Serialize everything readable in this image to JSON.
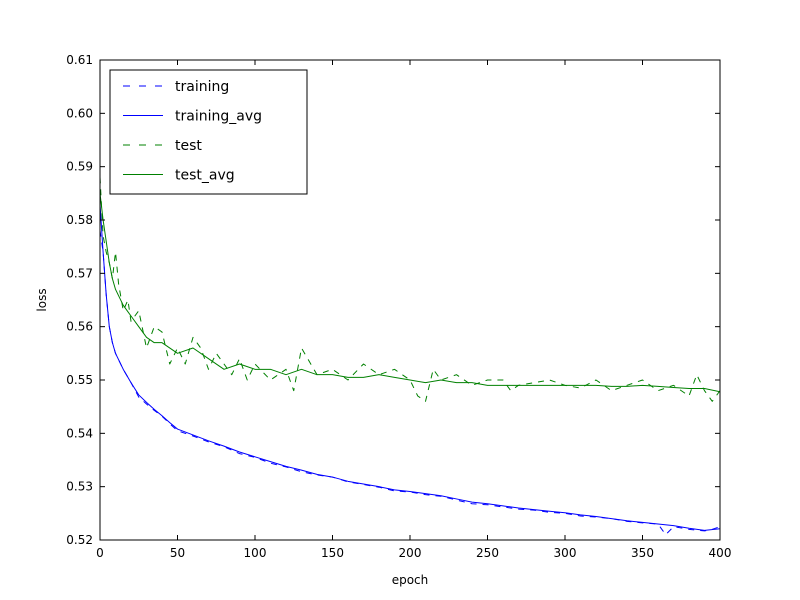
{
  "chart_data": {
    "type": "line",
    "title": "",
    "xlabel": "epoch",
    "ylabel": "loss",
    "xlim": [
      0,
      400
    ],
    "ylim": [
      0.52,
      0.61
    ],
    "xticks": [
      0,
      50,
      100,
      150,
      200,
      250,
      300,
      350,
      400
    ],
    "xtick_labels": [
      "0",
      "50",
      "100",
      "150",
      "200",
      "250",
      "300",
      "350",
      "400"
    ],
    "yticks": [
      0.52,
      0.53,
      0.54,
      0.55,
      0.56,
      0.57,
      0.58,
      0.59,
      0.6,
      0.61
    ],
    "ytick_labels": [
      "0.52",
      "0.53",
      "0.54",
      "0.55",
      "0.56",
      "0.57",
      "0.58",
      "0.59",
      "0.60",
      "0.61"
    ],
    "grid": false,
    "legend_position": "top-left",
    "series": [
      {
        "name": "training",
        "color": "#0000ff",
        "style": "dashed",
        "x": [
          0,
          2,
          4,
          6,
          8,
          10,
          15,
          20,
          25,
          30,
          35,
          40,
          45,
          50,
          60,
          70,
          80,
          90,
          100,
          110,
          120,
          130,
          140,
          150,
          160,
          170,
          180,
          190,
          200,
          210,
          220,
          230,
          240,
          250,
          260,
          270,
          280,
          290,
          300,
          310,
          320,
          330,
          340,
          350,
          360,
          365,
          370,
          380,
          390,
          395,
          400
        ],
        "y": [
          0.578,
          0.574,
          0.566,
          0.56,
          0.557,
          0.555,
          0.552,
          0.5495,
          0.5468,
          0.5455,
          0.5443,
          0.5432,
          0.5418,
          0.5405,
          0.5395,
          0.5384,
          0.5375,
          0.5362,
          0.5355,
          0.5344,
          0.5337,
          0.5328,
          0.5322,
          0.5318,
          0.5309,
          0.5304,
          0.5299,
          0.5292,
          0.529,
          0.5285,
          0.5282,
          0.5275,
          0.5268,
          0.5266,
          0.5262,
          0.5258,
          0.5256,
          0.5252,
          0.525,
          0.5245,
          0.5243,
          0.524,
          0.5235,
          0.5232,
          0.523,
          0.521,
          0.5225,
          0.522,
          0.5217,
          0.522,
          0.5225
        ]
      },
      {
        "name": "training_avg",
        "color": "#0000ff",
        "style": "solid",
        "x": [
          0,
          2,
          4,
          6,
          8,
          10,
          15,
          20,
          25,
          30,
          35,
          40,
          45,
          50,
          60,
          70,
          80,
          90,
          100,
          110,
          120,
          130,
          140,
          150,
          160,
          170,
          180,
          190,
          200,
          210,
          220,
          230,
          240,
          250,
          260,
          270,
          280,
          290,
          300,
          310,
          320,
          330,
          340,
          350,
          360,
          370,
          380,
          390,
          400
        ],
        "y": [
          0.583,
          0.574,
          0.566,
          0.56,
          0.557,
          0.555,
          0.552,
          0.5495,
          0.5472,
          0.5458,
          0.5445,
          0.5433,
          0.542,
          0.5408,
          0.5397,
          0.5386,
          0.5376,
          0.5365,
          0.5356,
          0.5347,
          0.5338,
          0.5331,
          0.5323,
          0.5318,
          0.531,
          0.5305,
          0.53,
          0.5294,
          0.5291,
          0.5287,
          0.5283,
          0.5277,
          0.5271,
          0.5268,
          0.5264,
          0.526,
          0.5257,
          0.5254,
          0.5251,
          0.5247,
          0.5244,
          0.524,
          0.5236,
          0.5233,
          0.523,
          0.5227,
          0.5222,
          0.5218,
          0.5221
        ]
      },
      {
        "name": "test",
        "color": "#008000",
        "style": "dashed",
        "x": [
          0,
          2,
          4,
          6,
          8,
          10,
          12,
          15,
          18,
          20,
          25,
          30,
          35,
          40,
          45,
          50,
          55,
          60,
          65,
          70,
          75,
          80,
          85,
          90,
          95,
          100,
          110,
          120,
          125,
          130,
          140,
          150,
          160,
          170,
          180,
          190,
          200,
          205,
          210,
          215,
          220,
          230,
          240,
          250,
          260,
          265,
          270,
          280,
          290,
          300,
          310,
          320,
          330,
          340,
          350,
          360,
          370,
          380,
          385,
          390,
          395,
          400
        ],
        "y": [
          0.588,
          0.577,
          0.574,
          0.572,
          0.569,
          0.574,
          0.568,
          0.563,
          0.565,
          0.561,
          0.563,
          0.556,
          0.56,
          0.559,
          0.553,
          0.556,
          0.553,
          0.558,
          0.556,
          0.552,
          0.555,
          0.553,
          0.551,
          0.554,
          0.55,
          0.553,
          0.55,
          0.552,
          0.548,
          0.556,
          0.551,
          0.552,
          0.55,
          0.553,
          0.551,
          0.552,
          0.55,
          0.547,
          0.546,
          0.552,
          0.55,
          0.551,
          0.549,
          0.55,
          0.55,
          0.548,
          0.549,
          0.5495,
          0.55,
          0.549,
          0.5485,
          0.55,
          0.548,
          0.549,
          0.55,
          0.548,
          0.549,
          0.547,
          0.551,
          0.548,
          0.546,
          0.548
        ]
      },
      {
        "name": "test_avg",
        "color": "#008000",
        "style": "solid",
        "x": [
          0,
          2,
          4,
          6,
          8,
          10,
          15,
          20,
          25,
          30,
          35,
          40,
          50,
          60,
          70,
          80,
          90,
          100,
          110,
          120,
          130,
          140,
          150,
          160,
          170,
          180,
          190,
          200,
          210,
          220,
          230,
          240,
          250,
          260,
          270,
          280,
          290,
          300,
          310,
          320,
          330,
          340,
          350,
          360,
          370,
          380,
          390,
          400
        ],
        "y": [
          0.585,
          0.58,
          0.576,
          0.572,
          0.569,
          0.567,
          0.564,
          0.562,
          0.56,
          0.558,
          0.557,
          0.557,
          0.555,
          0.556,
          0.554,
          0.552,
          0.553,
          0.552,
          0.552,
          0.551,
          0.552,
          0.551,
          0.551,
          0.5505,
          0.5505,
          0.551,
          0.5505,
          0.55,
          0.5495,
          0.55,
          0.5495,
          0.5495,
          0.549,
          0.549,
          0.549,
          0.549,
          0.549,
          0.549,
          0.549,
          0.549,
          0.5488,
          0.5488,
          0.549,
          0.5488,
          0.5486,
          0.5484,
          0.5484,
          0.5478
        ]
      }
    ]
  }
}
